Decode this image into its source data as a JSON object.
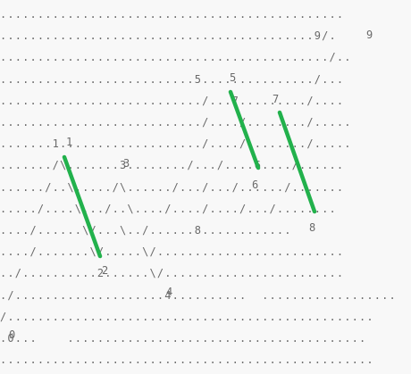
{
  "ascii_rows": [
    "..............................................",
    "..........................................9/.",
    "............................................/..",
    "..........................5.............../...",
    ".........................../...7........./....",
    ".........................../..../......../.....",
    ".......1.................../..../......../.....",
    "......./\\.......3......../.../....6..../......",
    "....../..\\...../\\....../.../.../....../.......",
    "...../....\\.../..\\..../..../..../.../........",
    "..../......\\/...\\../......8............",
    "..../.......\\/.....\\/.........................",
    "../..........2......\\/........................",
    "./....................4..........  ..................",
    "/.................................................",
    ".0...    ........................................",
    ".................................................."
  ],
  "labels": {
    "p0": "0",
    "p1": "1",
    "p2": "2",
    "p3": "3",
    "p4": "4",
    "p5": "5",
    "p6": "6",
    "p7": "7",
    "p8": "8",
    "p9": "9"
  },
  "highlight_color": "#22b14c",
  "ink_color": "#6a6a6a",
  "background_color": "#f8f8f8"
}
